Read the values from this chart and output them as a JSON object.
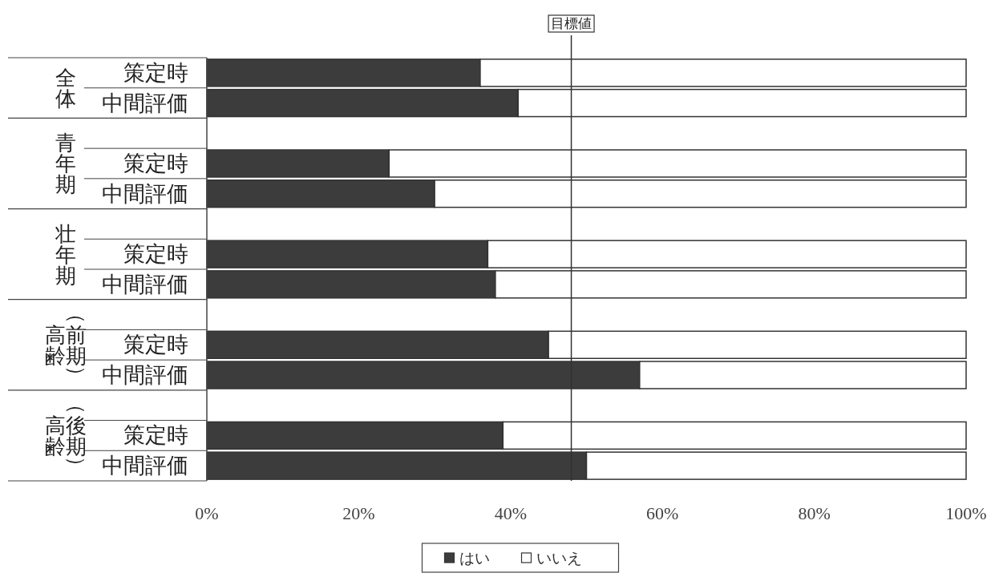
{
  "chart_data": {
    "type": "bar",
    "orientation": "horizontal",
    "stacked": true,
    "categories": [
      "策定時",
      "中間評価",
      null,
      "策定時",
      "中間評価",
      null,
      "策定時",
      "中間評価",
      null,
      "策定時",
      "中間評価",
      null,
      "策定時",
      "中間評価"
    ],
    "series": [
      {
        "name": "はい",
        "color": "#3c3c3c",
        "values": [
          36,
          41,
          null,
          24,
          30,
          null,
          37,
          38,
          null,
          45,
          57,
          null,
          39,
          50
        ]
      },
      {
        "name": "いいえ",
        "color": "#ffffff",
        "values": [
          64,
          59,
          null,
          76,
          70,
          null,
          63,
          62,
          null,
          55,
          43,
          null,
          61,
          50
        ]
      }
    ],
    "xlim": [
      0,
      100
    ],
    "xticks": [
      {
        "value": 0,
        "label": "0%"
      },
      {
        "value": 20,
        "label": "20%"
      },
      {
        "value": 40,
        "label": "40%"
      },
      {
        "value": 60,
        "label": "60%"
      },
      {
        "value": 80,
        "label": "80%"
      },
      {
        "value": 100,
        "label": "100%"
      }
    ],
    "ref_lines": [
      {
        "axis": "x",
        "value": 48,
        "label": "目標値"
      }
    ],
    "annotations": [
      "全体",
      "青年期",
      "壮年期",
      "高齢（前期）",
      "高齢（後期）"
    ],
    "legend": "bottom"
  }
}
